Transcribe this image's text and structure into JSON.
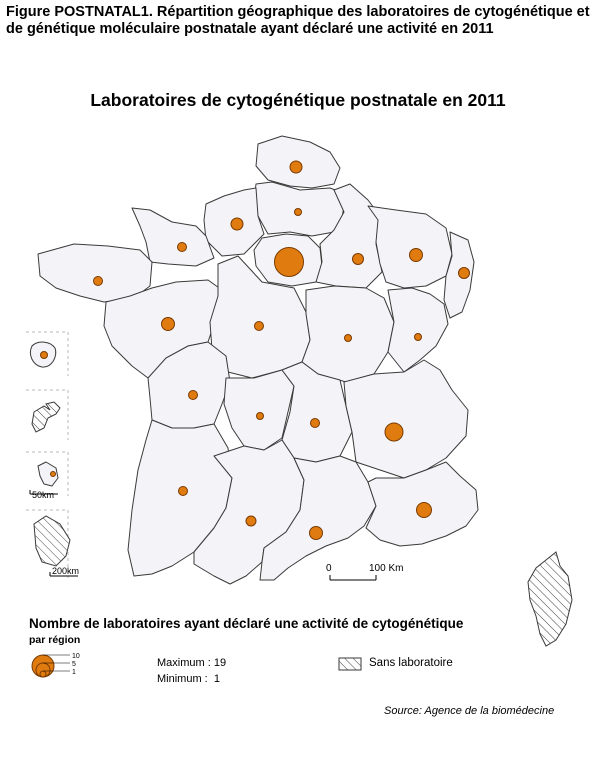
{
  "caption": "Figure POSTNATAL1. Répartition géographique des laboratoires de cytogénétique et de génétique moléculaire postnatale ayant déclaré une activité en 2011",
  "map_title": "Laboratoires de cytogénétique postnatale en 2011",
  "legend": {
    "title": "Nombre de laboratoires ayant déclaré une activité de cytogénétique",
    "subtitle": "par région",
    "bubble_labels": [
      "10",
      "5",
      "1"
    ],
    "maximum_label": "Maximum : 19",
    "minimum_label": "Minimum :  1",
    "sans_label": "Sans laboratoire"
  },
  "scale": {
    "zero": "0",
    "hundred": "100 Km",
    "inset_50": "50km",
    "inset_200": "200km"
  },
  "source": "Source: Agence de la biomédecine",
  "colors": {
    "bubble_fill": "#e07b10",
    "region_fill": "#f4f4f8"
  }
}
